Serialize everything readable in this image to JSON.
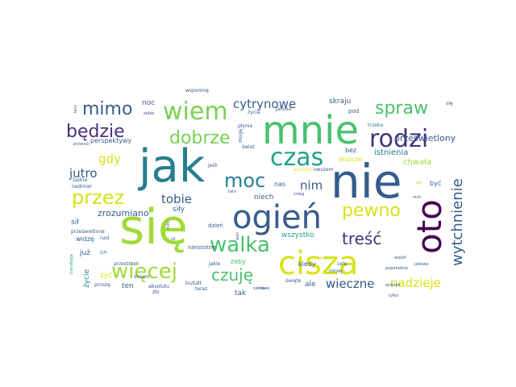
{
  "palette": {
    "yellow_green": "#a0da39",
    "light_green": "#7ad151",
    "green": "#4ac16d",
    "teal_green": "#1fa187",
    "teal": "#277f8e",
    "slate": "#365c8d",
    "indigo": "#46327e",
    "purple": "#440154",
    "yellow": "#d8e219",
    "pale_green": "#bddf26"
  },
  "words": [
    {
      "text": "mnie",
      "color": "#4ac16d"
    },
    {
      "text": "nie",
      "color": "#365c8d"
    },
    {
      "text": "jak",
      "color": "#277f8e"
    },
    {
      "text": "się",
      "color": "#a0da39"
    },
    {
      "text": "oto",
      "color": "#440154"
    },
    {
      "text": "cisza",
      "color": "#d8e219"
    },
    {
      "text": "ogień",
      "color": "#365c8d"
    },
    {
      "text": "wiem",
      "color": "#7ad151"
    },
    {
      "text": "czas",
      "color": "#1fa187"
    },
    {
      "text": "rodzi",
      "color": "#46327e"
    },
    {
      "text": "będzie",
      "color": "#46327e"
    },
    {
      "text": "mimo",
      "color": "#365c8d"
    },
    {
      "text": "dobrze",
      "color": "#7ad151"
    },
    {
      "text": "moc",
      "color": "#277f8e"
    },
    {
      "text": "spraw",
      "color": "#4ac16d"
    },
    {
      "text": "cytrynowe",
      "color": "#365c8d"
    },
    {
      "text": "przez",
      "color": "#d8e219"
    },
    {
      "text": "walka",
      "color": "#4ac16d"
    },
    {
      "text": "więcej",
      "color": "#a0da39"
    },
    {
      "text": "czuję",
      "color": "#4ac16d"
    },
    {
      "text": "pewno",
      "color": "#d8e219"
    },
    {
      "text": "treść",
      "color": "#46327e"
    },
    {
      "text": "wytchnienie",
      "color": "#365c8d"
    },
    {
      "text": "wieczne",
      "color": "#365c8d"
    },
    {
      "text": "nadzieje",
      "color": "#d8e219"
    },
    {
      "text": "jutro",
      "color": "#365c8d"
    },
    {
      "text": "tobie",
      "color": "#365c8d"
    },
    {
      "text": "nim",
      "color": "#365c8d"
    },
    {
      "text": "gdy",
      "color": "#d8e219"
    },
    {
      "text": "zrozumiano",
      "color": "#365c8d"
    },
    {
      "text": "prześwietlony",
      "color": "#365c8d"
    },
    {
      "text": "istnienia",
      "color": "#277f8e"
    },
    {
      "text": "chwała",
      "color": "#a0da39"
    },
    {
      "text": "wszystko",
      "color": "#1fa187"
    },
    {
      "text": "skraju",
      "color": "#365c8d"
    },
    {
      "text": "noc",
      "color": "#365c8d"
    },
    {
      "text": "perspektywy",
      "color": "#365c8d"
    },
    {
      "text": "niech",
      "color": "#365c8d"
    },
    {
      "text": "siły",
      "color": "#365c8d"
    },
    {
      "text": "sił",
      "color": "#365c8d"
    },
    {
      "text": "ten",
      "color": "#365c8d"
    },
    {
      "text": "tak",
      "color": "#365c8d"
    },
    {
      "text": "ale",
      "color": "#365c8d"
    },
    {
      "text": "kiedy",
      "color": "#365c8d"
    },
    {
      "text": "żeby",
      "color": "#4ac16d"
    },
    {
      "text": "już",
      "color": "#365c8d"
    },
    {
      "text": "życie",
      "color": "#277f8e"
    },
    {
      "text": "widzę",
      "color": "#365c8d"
    },
    {
      "text": "dzień",
      "color": "#365c8d"
    },
    {
      "text": "nas",
      "color": "#365c8d"
    },
    {
      "text": "bez",
      "color": "#365c8d"
    },
    {
      "text": "być",
      "color": "#365c8d"
    },
    {
      "text": "jeszcze",
      "color": "#d8e219"
    },
    {
      "text": "nieistotne",
      "color": "#365c8d"
    },
    {
      "text": "jeśli",
      "color": "#365c8d"
    },
    {
      "text": "wspomnę",
      "color": "#365c8d"
    },
    {
      "text": "pod",
      "color": "#365c8d"
    },
    {
      "text": "trzeba",
      "color": "#277f8e"
    },
    {
      "text": "się",
      "color": "#365c8d"
    },
    {
      "text": "życia",
      "color": "#365c8d"
    },
    {
      "text": "jałowa",
      "color": "#365c8d"
    },
    {
      "text": "płynie",
      "color": "#365c8d"
    },
    {
      "text": "świat",
      "color": "#365c8d"
    },
    {
      "text": "mogę",
      "color": "#365c8d"
    },
    {
      "text": "owszem",
      "color": "#365c8d"
    },
    {
      "text": "wszystko",
      "color": "#d8e219"
    },
    {
      "text": "żadna",
      "color": "#365c8d"
    },
    {
      "text": "nadmiar",
      "color": "#365c8d"
    },
    {
      "text": "ich",
      "color": "#365c8d"
    },
    {
      "text": "nad",
      "color": "#365c8d"
    },
    {
      "text": "prześwietlone",
      "color": "#365c8d"
    },
    {
      "text": "przestrzeń",
      "color": "#365c8d"
    },
    {
      "text": "śmierć",
      "color": "#365c8d"
    },
    {
      "text": "absolutu",
      "color": "#365c8d"
    },
    {
      "text": "zło",
      "color": "#365c8d"
    },
    {
      "text": "proszę",
      "color": "#365c8d"
    },
    {
      "text": "żyć",
      "color": "#d8e219"
    },
    {
      "text": "kształt",
      "color": "#365c8d"
    },
    {
      "text": "teraz",
      "color": "#365c8d"
    },
    {
      "text": "jakie",
      "color": "#365c8d"
    },
    {
      "text": "siebie",
      "color": "#365c8d"
    },
    {
      "text": "woli",
      "color": "#365c8d"
    },
    {
      "text": "święte",
      "color": "#365c8d"
    },
    {
      "text": "mniej",
      "color": "#365c8d"
    },
    {
      "text": "cele",
      "color": "#365c8d"
    },
    {
      "text": "słońce",
      "color": "#bddf26"
    },
    {
      "text": "jakowe",
      "color": "#365c8d"
    },
    {
      "text": "popołudnia",
      "color": "#365c8d"
    },
    {
      "text": "wokół",
      "color": "#365c8d"
    },
    {
      "text": "widzieli",
      "color": "#365c8d"
    },
    {
      "text": "tylko",
      "color": "#365c8d"
    },
    {
      "text": "nich",
      "color": "#365c8d"
    },
    {
      "text": "śnieg",
      "color": "#365c8d"
    },
    {
      "text": "transfuzja",
      "color": "#1fa187"
    },
    {
      "text": "przerośl",
      "color": "#365c8d"
    },
    {
      "text": "sobie",
      "color": "#365c8d"
    },
    {
      "text": "lecz",
      "color": "#365c8d"
    },
    {
      "text": "nikt",
      "color": "#365c8d"
    },
    {
      "text": "tam",
      "color": "#365c8d"
    },
    {
      "text": "sił",
      "color": "#365c8d"
    },
    {
      "text": "nowe",
      "color": "#365c8d"
    },
    {
      "text": "się",
      "color": "#bddf26"
    }
  ]
}
